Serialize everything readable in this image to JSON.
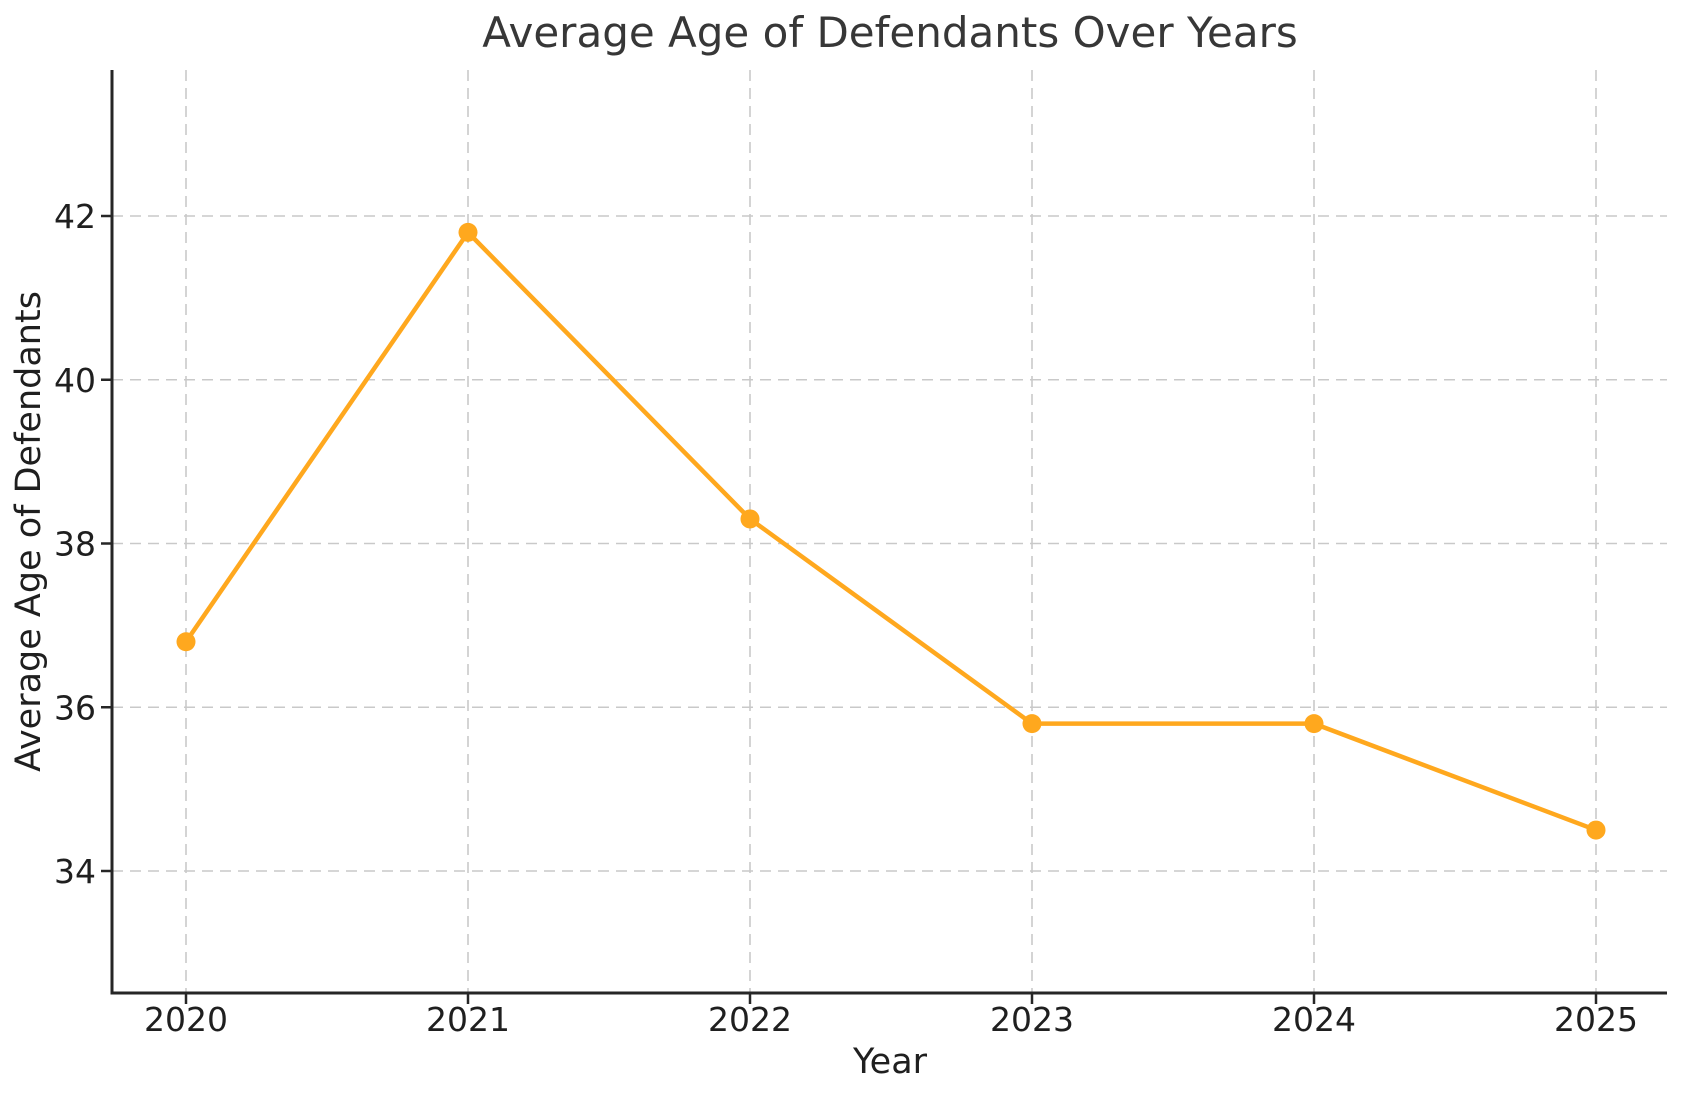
{
  "chart_data": {
    "type": "line",
    "title": "Average Age of Defendants Over Years",
    "xlabel": "Year",
    "ylabel": "Average Age of Defendants",
    "x": [
      2020,
      2021,
      2022,
      2023,
      2024,
      2025
    ],
    "series": [
      {
        "name": "Average Age of Defendants",
        "values": [
          36.8,
          41.8,
          38.3,
          35.8,
          35.8,
          34.5
        ]
      }
    ],
    "xtick_labels": [
      "2020",
      "2021",
      "2022",
      "2023",
      "2024",
      "2025"
    ],
    "ytick_values": [
      34,
      36,
      38,
      40,
      42
    ],
    "ytick_labels": [
      "34",
      "36",
      "38",
      "40",
      "42"
    ],
    "xlim": [
      2019.74,
      2025.25
    ],
    "ylim": [
      32.5,
      43.8
    ],
    "grid": "on",
    "grid_line_style": "dashed",
    "legend": "none",
    "colors": {
      "line": "#FFA81E",
      "marker": "#FFA81E",
      "grid": "#c9c9c9",
      "spine": "#262626",
      "text": "#1f1f1f",
      "background": "#ffffff"
    }
  }
}
